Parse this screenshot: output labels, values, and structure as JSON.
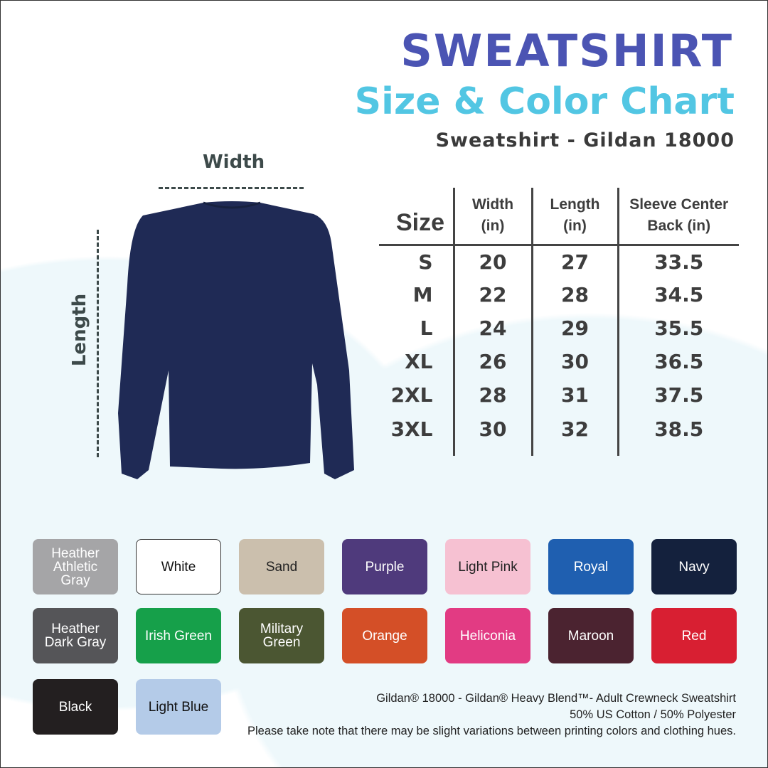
{
  "header": {
    "title": "SWEATSHIRT",
    "subtitle": "Size & Color Chart",
    "model": "Sweatshirt - Gildan 18000"
  },
  "diagram": {
    "width_label": "Width",
    "length_label": "Length",
    "garment_color": "#1f2a55"
  },
  "size_table": {
    "headers": [
      "Size",
      "Width\n(in)",
      "Length\n(in)",
      "Sleeve Center\nBack (in)"
    ],
    "rows": [
      [
        "S",
        "20",
        "27",
        "33.5"
      ],
      [
        "M",
        "22",
        "28",
        "34.5"
      ],
      [
        "L",
        "24",
        "29",
        "35.5"
      ],
      [
        "XL",
        "26",
        "30",
        "36.5"
      ],
      [
        "2XL",
        "28",
        "31",
        "37.5"
      ],
      [
        "3XL",
        "30",
        "32",
        "38.5"
      ]
    ]
  },
  "colors": [
    {
      "name": "Heather Athletic Gray",
      "hex": "#a5a5a7",
      "text": "#fff"
    },
    {
      "name": "White",
      "hex": "#ffffff",
      "text": "#111"
    },
    {
      "name": "Sand",
      "hex": "#cbbfad",
      "text": "#222"
    },
    {
      "name": "Purple",
      "hex": "#4f3a7c",
      "text": "#fff"
    },
    {
      "name": "Light Pink",
      "hex": "#f6c1d2",
      "text": "#222"
    },
    {
      "name": "Royal",
      "hex": "#1f5fb0",
      "text": "#fff"
    },
    {
      "name": "Navy",
      "hex": "#14213d",
      "text": "#fff"
    },
    {
      "name": "Heather Dark Gray",
      "hex": "#555558",
      "text": "#fff"
    },
    {
      "name": "Irish Green",
      "hex": "#16a04a",
      "text": "#fff"
    },
    {
      "name": "Military Green",
      "hex": "#4b5632",
      "text": "#fff"
    },
    {
      "name": "Orange",
      "hex": "#d44f27",
      "text": "#fff"
    },
    {
      "name": "Heliconia",
      "hex": "#e23b83",
      "text": "#fff"
    },
    {
      "name": "Maroon",
      "hex": "#4b2330",
      "text": "#fff"
    },
    {
      "name": "Red",
      "hex": "#d81f32",
      "text": "#fff"
    },
    {
      "name": "Black",
      "hex": "#231f20",
      "text": "#fff"
    },
    {
      "name": "Light Blue",
      "hex": "#b4cbe8",
      "text": "#111"
    }
  ],
  "footer": {
    "line1": "Gildan® 18000 - Gildan® Heavy Blend™-  Adult Crewneck Sweatshirt",
    "line2": "50% US Cotton / 50% Polyester",
    "line3": "Please take note that there may be slight variations between printing colors and clothing hues."
  }
}
